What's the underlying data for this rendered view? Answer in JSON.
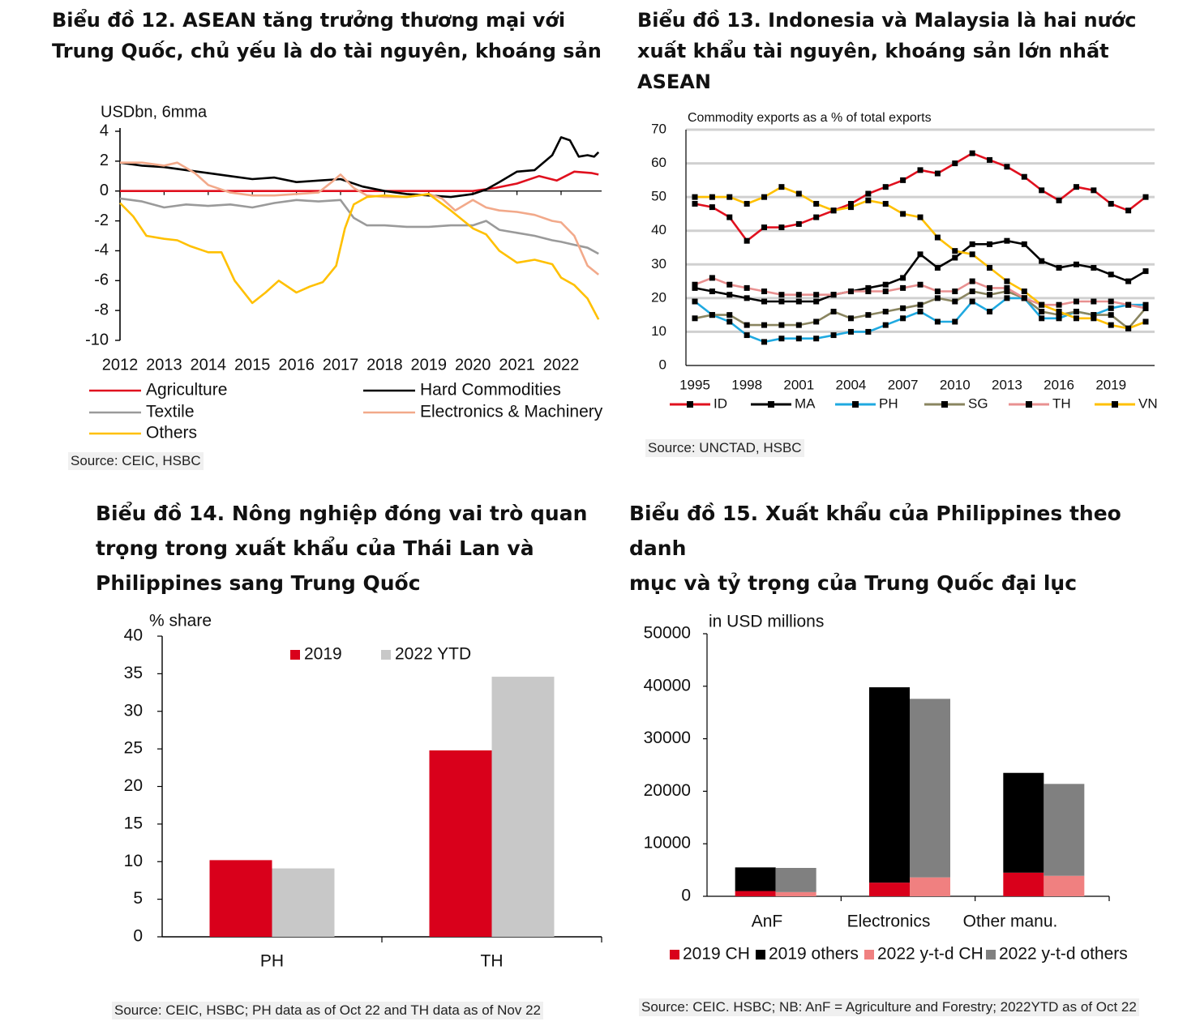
{
  "panels": {
    "p12": {
      "title": "Biểu đồ 12. ASEAN tăng trưởng thương mại với\nTrung Quốc, chủ yếu là do tài nguyên, khoáng sản",
      "source": "Source: CEIC, HSBC"
    },
    "p13": {
      "title": "Biểu đồ 13. Indonesia và Malaysia là hai nước\nxuất khẩu tài nguyên, khoáng sản lớn nhất\nASEAN",
      "source": "Source: UNCTAD, HSBC"
    },
    "p14": {
      "title": "Biểu đồ 14. Nông nghiệp đóng vai trò quan\ntrọng trong xuất khẩu của Thái Lan và\nPhilippines sang Trung Quốc",
      "source": "Source: CEIC, HSBC; PH data as of Oct 22 and TH data as of Nov 22"
    },
    "p15": {
      "title": "Biểu đồ 15. Xuất khẩu của Philippines theo danh\nmục và tỷ trọng của Trung Quốc đại lục",
      "source": "Source: CEIC. HSBC; NB: AnF = Agriculture and Forestry; 2022YTD as of Oct 22"
    }
  },
  "chart_data": [
    {
      "id": "c12",
      "type": "line",
      "ylabel": "USDbn, 6mma",
      "ylim": [
        -10,
        4
      ],
      "yticks": [
        4,
        2,
        0,
        -2,
        -4,
        -6,
        -8,
        -10
      ],
      "xlim": [
        2012,
        2022.9
      ],
      "xticks": [
        "2012",
        "2013",
        "2014",
        "2015",
        "2016",
        "2017",
        "2018",
        "2019",
        "2020",
        "2021",
        "2022"
      ],
      "legend": "bottom",
      "series": [
        {
          "name": "Agriculture",
          "color": "#e0101e",
          "x": [
            2012,
            2013,
            2014,
            2015,
            2016,
            2017,
            2018,
            2019,
            2020,
            2020.5,
            2021,
            2021.5,
            2021.9,
            2022.3,
            2022.7,
            2022.85
          ],
          "y": [
            0,
            0,
            0,
            0,
            0,
            0,
            0,
            0,
            0,
            0.2,
            0.5,
            1.0,
            0.7,
            1.3,
            1.2,
            1.1
          ]
        },
        {
          "name": "Hard Commodities",
          "color": "#000000",
          "x": [
            2012,
            2012.5,
            2013,
            2013.5,
            2014,
            2014.5,
            2015,
            2015.5,
            2016,
            2016.5,
            2017,
            2017.5,
            2018,
            2018.5,
            2019,
            2019.5,
            2020,
            2020.3,
            2020.6,
            2021,
            2021.4,
            2021.8,
            2022,
            2022.2,
            2022.4,
            2022.6,
            2022.75,
            2022.85
          ],
          "y": [
            1.9,
            1.7,
            1.6,
            1.4,
            1.2,
            1.0,
            0.8,
            0.9,
            0.6,
            0.7,
            0.8,
            0.3,
            0.0,
            -0.2,
            -0.3,
            -0.4,
            -0.2,
            0.1,
            0.6,
            1.3,
            1.4,
            2.4,
            3.6,
            3.4,
            2.3,
            2.4,
            2.3,
            2.6
          ]
        },
        {
          "name": "Textile",
          "color": "#9a9a9a",
          "x": [
            2012,
            2012.5,
            2013,
            2013.5,
            2014,
            2014.5,
            2015,
            2015.5,
            2016,
            2016.5,
            2017,
            2017.3,
            2017.6,
            2018,
            2018.5,
            2019,
            2019.5,
            2020,
            2020.3,
            2020.6,
            2021,
            2021.4,
            2021.8,
            2022,
            2022.3,
            2022.6,
            2022.85
          ],
          "y": [
            -0.5,
            -0.7,
            -1.1,
            -0.9,
            -1.0,
            -0.9,
            -1.1,
            -0.8,
            -0.6,
            -0.7,
            -0.6,
            -1.8,
            -2.3,
            -2.3,
            -2.4,
            -2.4,
            -2.3,
            -2.3,
            -2.0,
            -2.6,
            -2.8,
            -3.0,
            -3.3,
            -3.4,
            -3.6,
            -3.8,
            -4.2
          ]
        },
        {
          "name": "Electronics & Machinery",
          "color": "#f2a98a",
          "x": [
            2012,
            2012.5,
            2013,
            2013.3,
            2013.7,
            2014,
            2014.5,
            2015,
            2015.5,
            2016,
            2016.5,
            2016.8,
            2017,
            2017.3,
            2017.6,
            2018,
            2018.5,
            2019,
            2019.3,
            2019.6,
            2020,
            2020.3,
            2020.6,
            2021,
            2021.4,
            2021.8,
            2022,
            2022.3,
            2022.6,
            2022.85
          ],
          "y": [
            1.9,
            1.9,
            1.7,
            1.9,
            1.2,
            0.4,
            -0.1,
            -0.3,
            -0.3,
            -0.2,
            -0.1,
            0.6,
            1.1,
            0.2,
            -0.3,
            -0.4,
            -0.4,
            -0.2,
            -0.5,
            -1.3,
            -0.6,
            -1.1,
            -1.3,
            -1.4,
            -1.6,
            -2.0,
            -2.1,
            -3.0,
            -5.0,
            -5.6
          ]
        },
        {
          "name": "Others",
          "color": "#ffc000",
          "x": [
            2012,
            2012.3,
            2012.6,
            2013,
            2013.3,
            2013.6,
            2014,
            2014.3,
            2014.6,
            2015,
            2015.3,
            2015.6,
            2016,
            2016.3,
            2016.6,
            2016.9,
            2017.1,
            2017.3,
            2017.6,
            2018,
            2018.5,
            2019,
            2019.5,
            2020,
            2020.3,
            2020.6,
            2021,
            2021.4,
            2021.8,
            2022,
            2022.3,
            2022.6,
            2022.85
          ],
          "y": [
            -0.8,
            -1.7,
            -3.0,
            -3.2,
            -3.3,
            -3.7,
            -4.1,
            -4.1,
            -6.0,
            -7.5,
            -6.8,
            -6.0,
            -6.8,
            -6.4,
            -6.1,
            -5.0,
            -2.5,
            -0.9,
            -0.4,
            -0.3,
            -0.4,
            -0.2,
            -1.3,
            -2.5,
            -2.9,
            -4.0,
            -4.8,
            -4.6,
            -4.9,
            -5.8,
            -6.3,
            -7.2,
            -8.6
          ]
        }
      ]
    },
    {
      "id": "c13",
      "type": "line",
      "ylabel": "Commodity  exports as a % of total  exports",
      "ylim": [
        0,
        70
      ],
      "yticks": [
        70,
        60,
        50,
        40,
        30,
        20,
        10,
        0
      ],
      "xlim": [
        1995,
        2021
      ],
      "xticks": [
        "1995",
        "1998",
        "2001",
        "2004",
        "2007",
        "2010",
        "2013",
        "2016",
        "2019"
      ],
      "legend": "bottom",
      "grid": true,
      "x": [
        1995,
        1996,
        1997,
        1998,
        1999,
        2000,
        2001,
        2002,
        2003,
        2004,
        2005,
        2006,
        2007,
        2008,
        2009,
        2010,
        2011,
        2012,
        2013,
        2014,
        2015,
        2016,
        2017,
        2018,
        2019,
        2020,
        2021
      ],
      "series": [
        {
          "name": "ID",
          "color": "#e0101e",
          "y": [
            48,
            47,
            44,
            37,
            41,
            41,
            42,
            44,
            46,
            48,
            51,
            53,
            55,
            58,
            57,
            60,
            63,
            61,
            59,
            56,
            52,
            49,
            53,
            52,
            48,
            46,
            50
          ]
        },
        {
          "name": "MA",
          "color": "#000000",
          "y": [
            23,
            22,
            21,
            20,
            19,
            19,
            19,
            19,
            21,
            22,
            23,
            24,
            26,
            33,
            29,
            32,
            36,
            36,
            37,
            36,
            31,
            29,
            30,
            29,
            27,
            25,
            28
          ]
        },
        {
          "name": "PH",
          "color": "#1fa9e0",
          "y": [
            19,
            15,
            13,
            9,
            7,
            8,
            8,
            8,
            9,
            10,
            10,
            12,
            14,
            16,
            13,
            13,
            19,
            16,
            20,
            20,
            14,
            14,
            16,
            15,
            17,
            18,
            18
          ]
        },
        {
          "name": "SG",
          "color": "#8a8560",
          "y": [
            14,
            15,
            15,
            12,
            12,
            12,
            12,
            13,
            16,
            14,
            15,
            16,
            17,
            18,
            20,
            19,
            22,
            21,
            22,
            20,
            16,
            15,
            16,
            15,
            15,
            11,
            17
          ]
        },
        {
          "name": "TH",
          "color": "#e89090",
          "y": [
            24,
            26,
            24,
            23,
            22,
            21,
            21,
            21,
            21,
            22,
            22,
            22,
            23,
            24,
            22,
            22,
            25,
            23,
            23,
            20,
            18,
            18,
            19,
            19,
            19,
            18,
            17
          ]
        },
        {
          "name": "VN",
          "color": "#ffc000",
          "y": [
            50,
            50,
            50,
            48,
            50,
            53,
            51,
            48,
            46,
            47,
            49,
            48,
            45,
            44,
            38,
            34,
            33,
            29,
            25,
            22,
            18,
            16,
            14,
            14,
            12,
            11,
            13
          ]
        }
      ]
    },
    {
      "id": "c14",
      "type": "bar",
      "ylabel": "% share",
      "ylim": [
        0,
        40
      ],
      "yticks": [
        40,
        35,
        30,
        25,
        20,
        15,
        10,
        5,
        0
      ],
      "categories": [
        "PH",
        "TH"
      ],
      "legend": "top",
      "series": [
        {
          "name": "2019",
          "color": "#d9001b",
          "values": [
            10.2,
            24.8
          ]
        },
        {
          "name": "2022 YTD",
          "color": "#c8c8c8",
          "values": [
            9.1,
            34.6
          ]
        }
      ]
    },
    {
      "id": "c15",
      "type": "bar",
      "stacked": true,
      "ylabel": "in USD millions",
      "ylim": [
        0,
        50000
      ],
      "yticks": [
        50000,
        40000,
        30000,
        20000,
        10000,
        0
      ],
      "categories": [
        "AnF",
        "Electronics",
        "Other manu."
      ],
      "legend": "bottom",
      "groups": [
        {
          "label": "2019",
          "stack": [
            {
              "name": "2019 CH",
              "color": "#d9001b",
              "values": [
                1000,
                2600,
                4500
              ]
            },
            {
              "name": "2019 others",
              "color": "#000000",
              "values": [
                4500,
                37200,
                19000
              ]
            }
          ]
        },
        {
          "label": "2022",
          "stack": [
            {
              "name": "2022 y-t-d CH",
              "color": "#f08080",
              "values": [
                800,
                3600,
                3900
              ]
            },
            {
              "name": "2022 y-t-d others",
              "color": "#808080",
              "values": [
                4600,
                34000,
                17500
              ]
            }
          ]
        }
      ]
    }
  ]
}
